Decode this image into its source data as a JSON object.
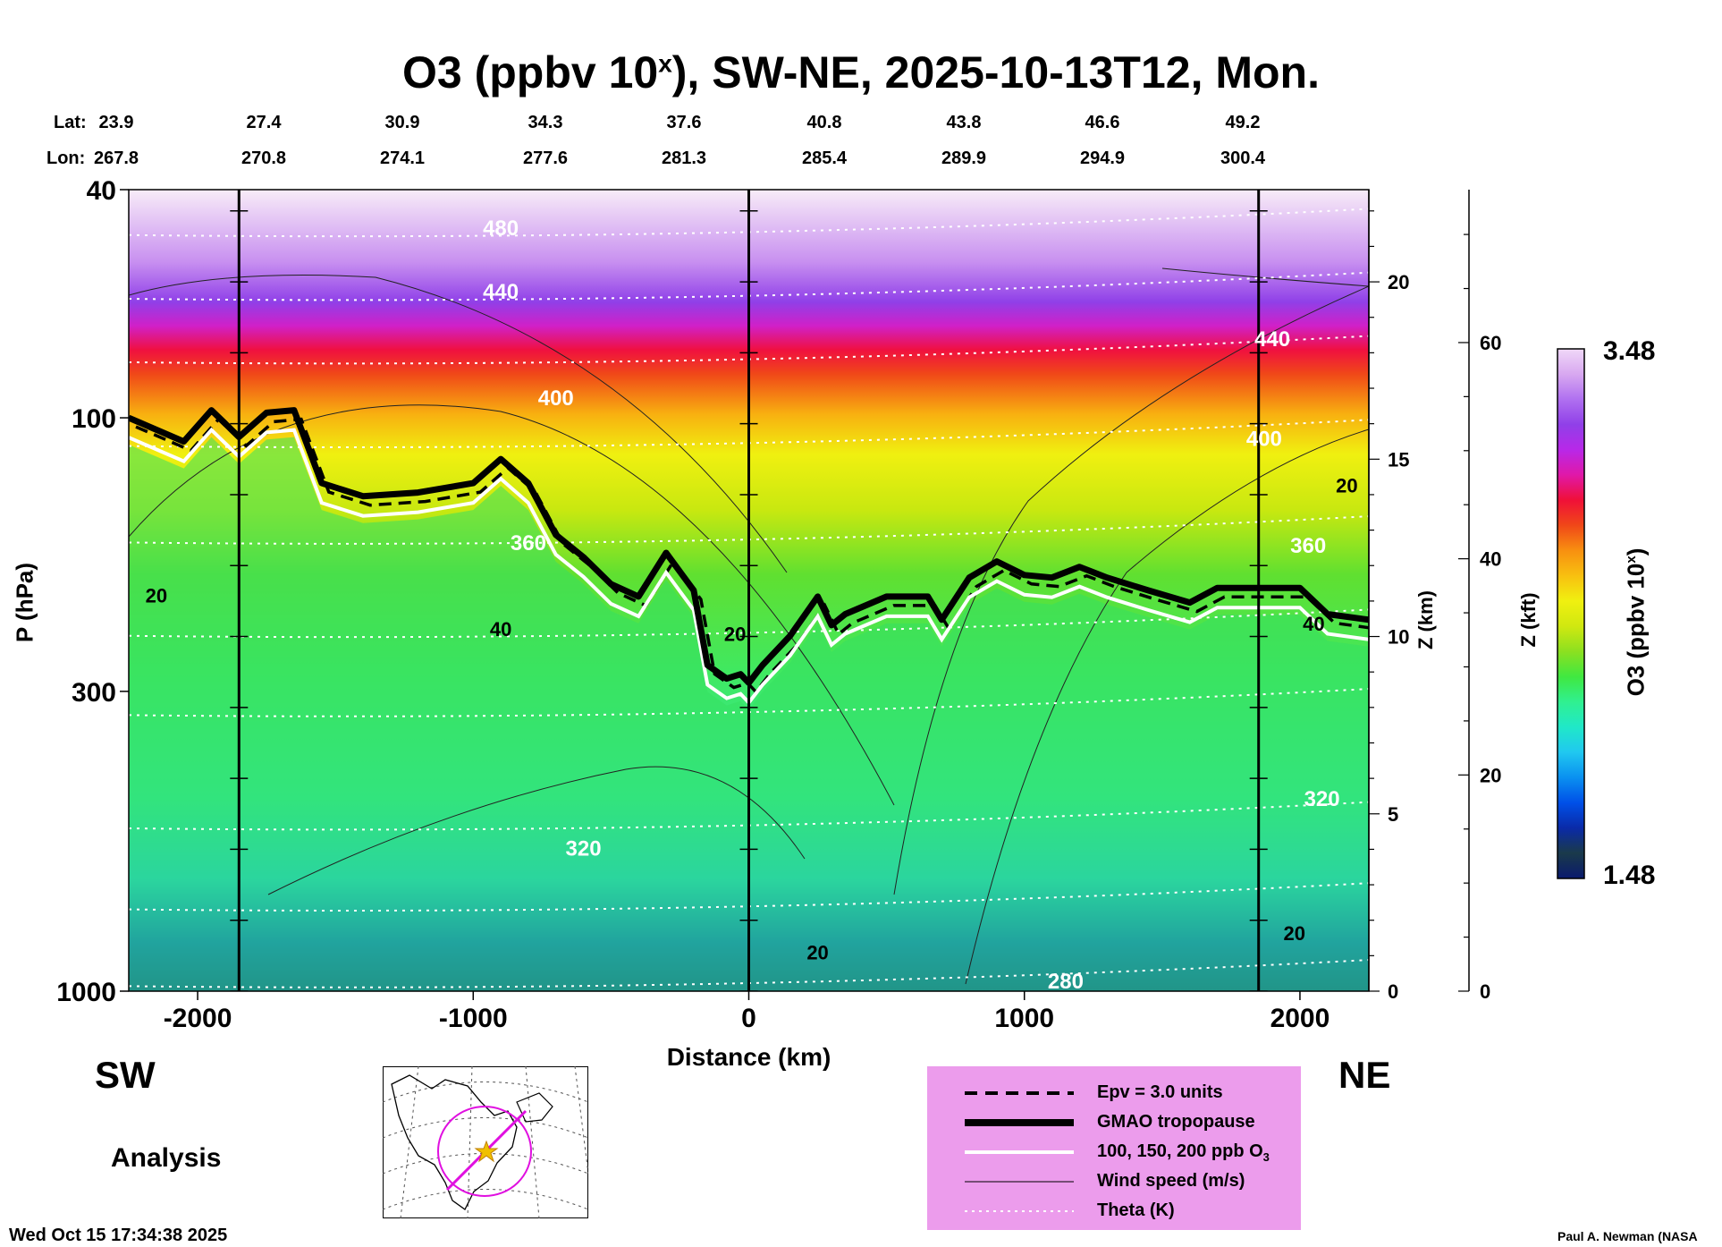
{
  "header": {
    "title": "O3 (ppbv 10",
    "title_sup": "x",
    "title_rest": "), SW-NE, 2025-10-13T12, Mon."
  },
  "coords": {
    "lat_label": "Lat:",
    "lon_label": "Lon:",
    "lat": [
      "23.9",
      "27.4",
      "30.9",
      "34.3",
      "37.6",
      "40.8",
      "43.8",
      "46.6",
      "49.2"
    ],
    "lon": [
      "267.8",
      "270.8",
      "274.1",
      "277.6",
      "281.3",
      "285.4",
      "289.9",
      "294.9",
      "300.4"
    ]
  },
  "labels": {
    "sw": "SW",
    "ne": "NE",
    "analysis": "Analysis",
    "timestamp": "Wed Oct 15 17:34:38 2025",
    "credit": "Paul A. Newman (NASA"
  },
  "legend": {
    "items": [
      {
        "label": "Epv = 3.0 units",
        "style": "dashed"
      },
      {
        "label": "GMAO tropopause",
        "style": "thick"
      },
      {
        "label": "100, 150, 200 ppb O",
        "sub": "3",
        "style": "white"
      },
      {
        "label": "Wind speed (m/s)",
        "style": "thin"
      },
      {
        "label": "Theta (K)",
        "style": "dotted"
      }
    ],
    "background": "#ec9cec"
  },
  "colorbar": {
    "title": "O3 (ppbv 10",
    "title_sup": "x",
    "title_end": ")",
    "max_label": "3.48",
    "min_label": "1.48",
    "stops": [
      "#0a1a6e",
      "#1a3a4a",
      "#0a2aa8",
      "#0050e8",
      "#0a90f0",
      "#20c8f0",
      "#20e8c8",
      "#30f090",
      "#40e840",
      "#8ce020",
      "#d0e810",
      "#f0f010",
      "#f8c010",
      "#f89010",
      "#f04818",
      "#f01038",
      "#e018a8",
      "#b828e8",
      "#9040e8",
      "#b070f0",
      "#d8a8f0",
      "#f0d8f8"
    ]
  },
  "chart_data": {
    "type": "heatmap",
    "xlabel": "Distance (km)",
    "ylabel": "P (hPa)",
    "y2label": "Z (km)",
    "y3label": "Z (kft)",
    "xlim": [
      -2250,
      2250
    ],
    "ylim": [
      1000,
      40
    ],
    "yscale": "log",
    "x_ticks": [
      -2000,
      -1000,
      0,
      1000,
      2000
    ],
    "x_tick_labels": [
      "-2000",
      "-1000",
      "0",
      "1000",
      "2000"
    ],
    "y_ticks": [
      40,
      100,
      300,
      1000
    ],
    "y_tick_labels": [
      "40",
      "100",
      "300",
      "1000"
    ],
    "z_km_ticks": [
      0,
      5,
      10,
      15,
      20
    ],
    "z_km_labels": [
      "0",
      "5",
      "10",
      "15",
      "20"
    ],
    "z_kft_ticks": [
      0,
      20,
      40,
      60
    ],
    "z_kft_labels": [
      "0",
      "20",
      "40",
      "60"
    ],
    "colorbar_range": [
      1.48,
      3.48
    ],
    "profile_x": [
      -1850,
      0,
      1850
    ],
    "tropopause": {
      "name": "GMAO tropopause",
      "x": [
        -2250,
        -2050,
        -1950,
        -1850,
        -1750,
        -1650,
        -1550,
        -1400,
        -1200,
        -1000,
        -900,
        -800,
        -700,
        -600,
        -500,
        -400,
        -300,
        -200,
        -150,
        -80,
        -30,
        0,
        50,
        150,
        250,
        300,
        350,
        500,
        650,
        700,
        800,
        900,
        1000,
        1100,
        1200,
        1300,
        1450,
        1600,
        1700,
        1850,
        2000,
        2100,
        2250
      ],
      "y": [
        100,
        110,
        97,
        108,
        98,
        97,
        130,
        137,
        135,
        130,
        118,
        130,
        160,
        175,
        195,
        205,
        172,
        200,
        270,
        285,
        280,
        290,
        270,
        240,
        205,
        230,
        220,
        205,
        205,
        225,
        190,
        178,
        188,
        190,
        182,
        190,
        200,
        210,
        198,
        198,
        198,
        220,
        225
      ]
    },
    "theta_labels": [
      {
        "x": -900,
        "p": 48,
        "label": "480"
      },
      {
        "x": -900,
        "p": 62,
        "label": "440"
      },
      {
        "x": -700,
        "p": 95,
        "label": "400"
      },
      {
        "x": -800,
        "p": 170,
        "label": "360"
      },
      {
        "x": -600,
        "p": 580,
        "label": "320"
      },
      {
        "x": 1150,
        "p": 990,
        "label": "280"
      },
      {
        "x": 1900,
        "p": 75,
        "label": "440"
      },
      {
        "x": 1870,
        "p": 112,
        "label": "400"
      },
      {
        "x": 2030,
        "p": 172,
        "label": "360"
      },
      {
        "x": 2080,
        "p": 475,
        "label": "320"
      }
    ],
    "wind_labels": [
      {
        "x": -2150,
        "p": 210,
        "label": "20"
      },
      {
        "x": -900,
        "p": 240,
        "label": "40"
      },
      {
        "x": -50,
        "p": 245,
        "label": "20"
      },
      {
        "x": 250,
        "p": 880,
        "label": "20"
      },
      {
        "x": 2170,
        "p": 135,
        "label": "20"
      },
      {
        "x": 2050,
        "p": 235,
        "label": "40"
      },
      {
        "x": 1980,
        "p": 815,
        "label": "20"
      }
    ]
  }
}
